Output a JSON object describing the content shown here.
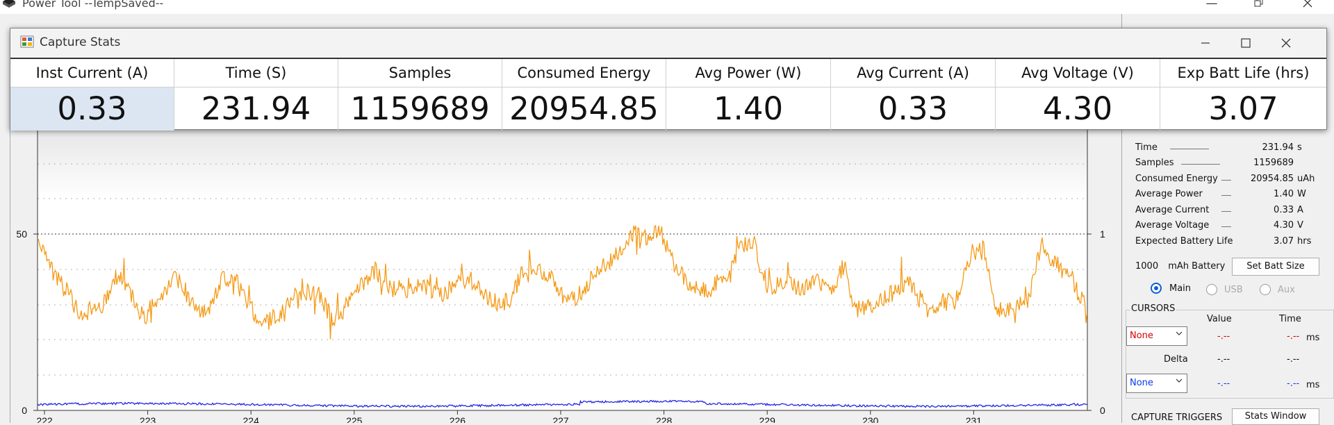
{
  "main_window": {
    "title": "Power Tool --TempSaved--"
  },
  "capture_window": {
    "title": "Capture Stats",
    "columns": [
      {
        "header": "Inst Current (A)",
        "value": "0.33"
      },
      {
        "header": "Time (S)",
        "value": "231.94"
      },
      {
        "header": "Samples",
        "value": "1159689"
      },
      {
        "header": "Consumed Energy",
        "value": "20954.85"
      },
      {
        "header": "Avg Power (W)",
        "value": "1.40"
      },
      {
        "header": "Avg Current (A)",
        "value": "0.33"
      },
      {
        "header": "Avg Voltage (V)",
        "value": "4.30"
      },
      {
        "header": "Exp Batt Life (hrs)",
        "value": "3.07"
      }
    ]
  },
  "plot": {
    "y_left_ticks": [
      "50",
      "0"
    ],
    "y_right_ticks": [
      "1",
      "0"
    ],
    "x_ticks": [
      "222",
      "223",
      "224",
      "225",
      "226",
      "227",
      "228",
      "229",
      "230",
      "231"
    ],
    "series_colors": {
      "current": "#f59a16",
      "voltage": "#2424e6"
    }
  },
  "side_stats": {
    "rows": [
      {
        "label": "Time",
        "value": "231.94",
        "unit": "s"
      },
      {
        "label": "Samples",
        "value": "1159689",
        "unit": ""
      },
      {
        "label": "Consumed Energy",
        "value": "20954.85",
        "unit": "uAh"
      },
      {
        "label": "Average Power",
        "value": "1.40",
        "unit": "W"
      },
      {
        "label": "Average Current",
        "value": "0.33",
        "unit": "A"
      },
      {
        "label": "Average Voltage",
        "value": "4.30",
        "unit": "V"
      },
      {
        "label": "Expected Battery Life",
        "value": "3.07",
        "unit": "hrs"
      }
    ],
    "battery_value": "1000",
    "battery_label": "mAh Battery",
    "set_batt_button": "Set Batt Size",
    "channels": {
      "main": "Main",
      "usb": "USB",
      "aux": "Aux"
    }
  },
  "cursors": {
    "title": "CURSORS",
    "value_header": "Value",
    "time_header": "Time",
    "cursor1": {
      "select": "None",
      "value": "-.--",
      "time": "-.--",
      "unit": "ms"
    },
    "delta": {
      "label": "Delta",
      "value": "-.--",
      "time": "-.--"
    },
    "cursor2": {
      "select": "None",
      "value": "-.--",
      "time": "-.--",
      "unit": "ms"
    }
  },
  "triggers": {
    "title": "CAPTURE TRIGGERS",
    "stats_window_button": "Stats Window"
  }
}
